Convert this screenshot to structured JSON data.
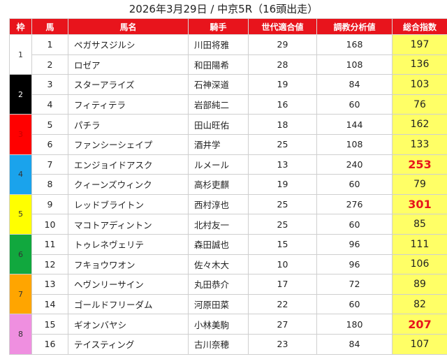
{
  "title": "2026年3月29日 / 中京5R（16頭出走）",
  "headers": [
    "枠",
    "馬",
    "馬名",
    "騎手",
    "世代適合値",
    "調教分析値",
    "総合指数"
  ],
  "frames": [
    {
      "label": "1",
      "color": "#ffffff",
      "text_color": "#333333"
    },
    {
      "label": "2",
      "color": "#000000",
      "text_color": "#ffffff"
    },
    {
      "label": "3",
      "color": "#ff0000",
      "text_color": "#cc0000"
    },
    {
      "label": "4",
      "color": "#1aa3ec",
      "text_color": "#333333"
    },
    {
      "label": "5",
      "color": "#ffff00",
      "text_color": "#333333"
    },
    {
      "label": "6",
      "color": "#11a83e",
      "text_color": "#333333"
    },
    {
      "label": "7",
      "color": "#ffa500",
      "text_color": "#333333"
    },
    {
      "label": "8",
      "color": "#ef8fe0",
      "text_color": "#333333"
    }
  ],
  "rows": [
    {
      "num": "1",
      "name": "ペガサスジルシ",
      "jockey": "川田将雅",
      "gen": "29",
      "train": "168",
      "total": "197",
      "top": false
    },
    {
      "num": "2",
      "name": "ロゼア",
      "jockey": "和田陽希",
      "gen": "28",
      "train": "108",
      "total": "136",
      "top": false
    },
    {
      "num": "3",
      "name": "スターアライズ",
      "jockey": "石神深道",
      "gen": "19",
      "train": "84",
      "total": "103",
      "top": false
    },
    {
      "num": "4",
      "name": "フィティテラ",
      "jockey": "岩部純二",
      "gen": "16",
      "train": "60",
      "total": "76",
      "top": false
    },
    {
      "num": "5",
      "name": "パチラ",
      "jockey": "田山旺佑",
      "gen": "18",
      "train": "144",
      "total": "162",
      "top": false
    },
    {
      "num": "6",
      "name": "ファンシーシェイプ",
      "jockey": "酒井学",
      "gen": "25",
      "train": "108",
      "total": "133",
      "top": false
    },
    {
      "num": "7",
      "name": "エンジョイドアスク",
      "jockey": "ルメール",
      "gen": "13",
      "train": "240",
      "total": "253",
      "top": true
    },
    {
      "num": "8",
      "name": "クィーンズウィンク",
      "jockey": "高杉吏麒",
      "gen": "19",
      "train": "60",
      "total": "79",
      "top": false
    },
    {
      "num": "9",
      "name": "レッドブライトン",
      "jockey": "西村淳也",
      "gen": "25",
      "train": "276",
      "total": "301",
      "top": true
    },
    {
      "num": "10",
      "name": "マコトアディントン",
      "jockey": "北村友一",
      "gen": "25",
      "train": "60",
      "total": "85",
      "top": false
    },
    {
      "num": "11",
      "name": "トゥレネヴェリテ",
      "jockey": "森田誠也",
      "gen": "15",
      "train": "96",
      "total": "111",
      "top": false
    },
    {
      "num": "12",
      "name": "フキョウワオン",
      "jockey": "佐々木大",
      "gen": "10",
      "train": "96",
      "total": "106",
      "top": false
    },
    {
      "num": "13",
      "name": "ヘヴンリーサイン",
      "jockey": "丸田恭介",
      "gen": "17",
      "train": "72",
      "total": "89",
      "top": false
    },
    {
      "num": "14",
      "name": "ゴールドフリーダム",
      "jockey": "河原田菜",
      "gen": "22",
      "train": "60",
      "total": "82",
      "top": false
    },
    {
      "num": "15",
      "name": "ギオンバヤシ",
      "jockey": "小林美駒",
      "gen": "27",
      "train": "180",
      "total": "207",
      "top": true
    },
    {
      "num": "16",
      "name": "テイスティング",
      "jockey": "古川奈穂",
      "gen": "23",
      "train": "84",
      "total": "107",
      "top": false
    }
  ]
}
